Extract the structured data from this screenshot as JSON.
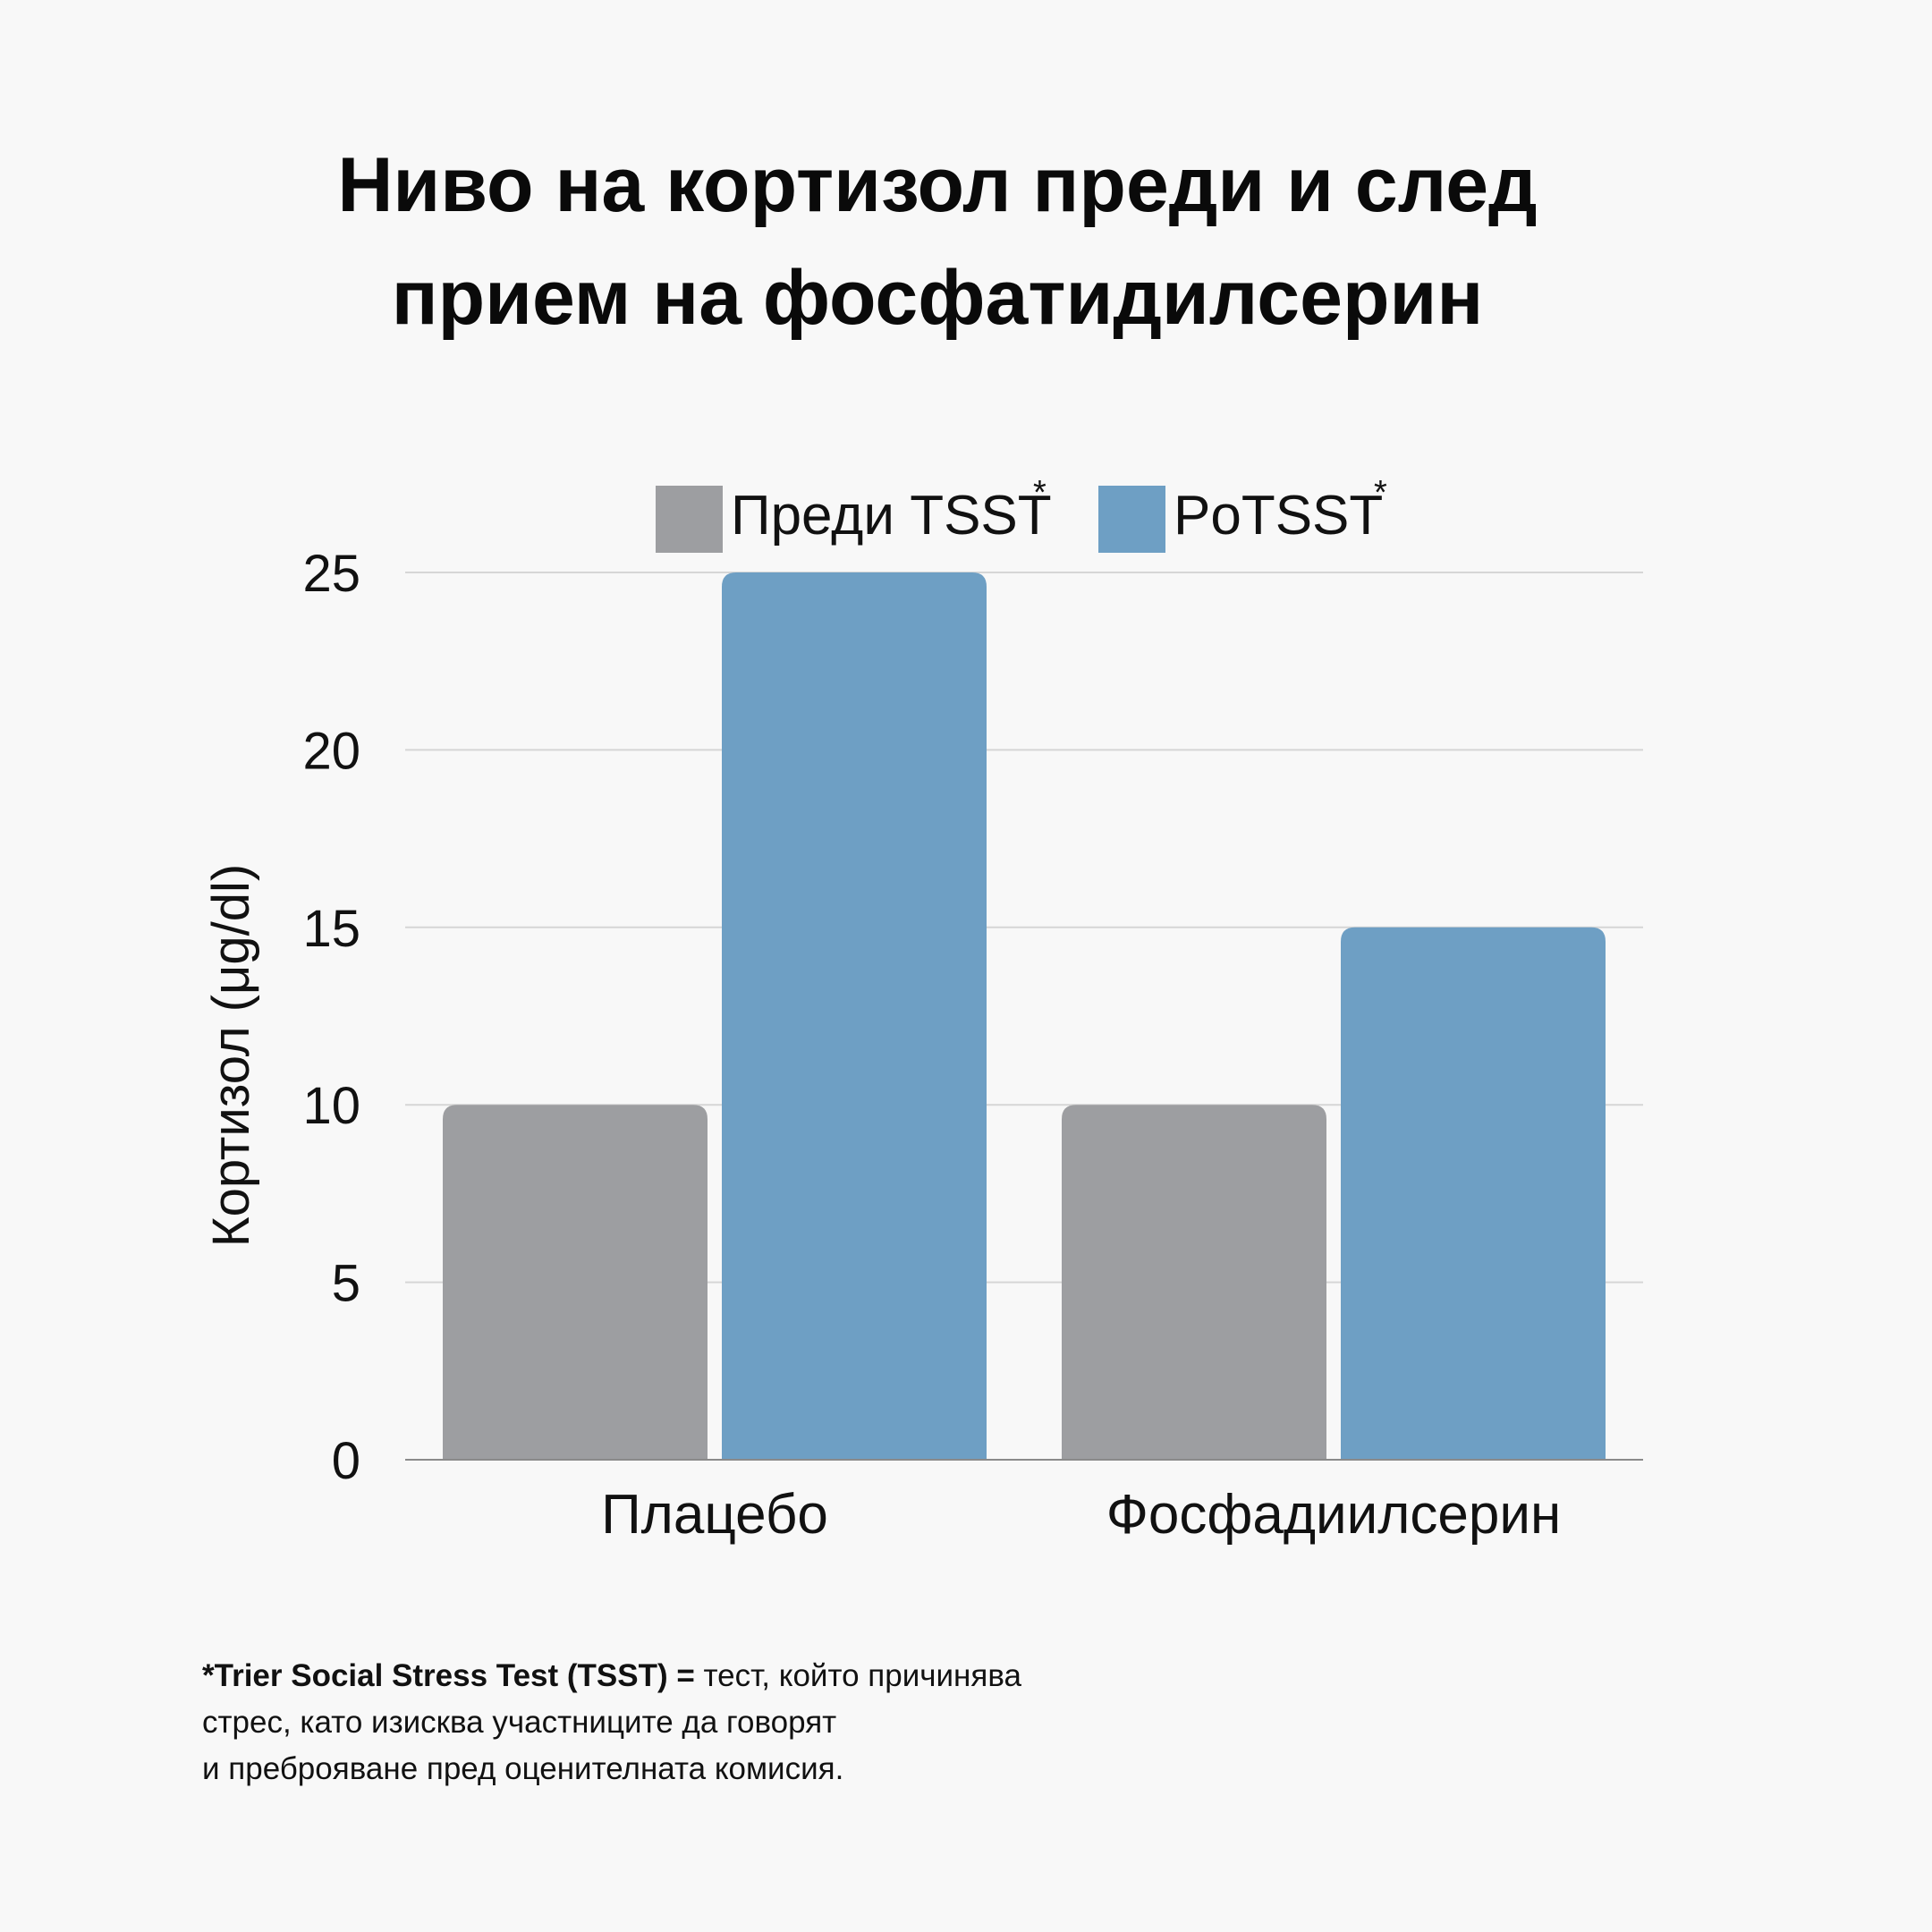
{
  "chart_data": {
    "type": "bar",
    "title_lines": [
      "Ниво на кортизол преди и след",
      "прием на фосфатидилсерин"
    ],
    "categories": [
      "Плацебо",
      "Фосфадиилсерин"
    ],
    "series": [
      {
        "name": "Преди TSST",
        "marker": "*",
        "color": "#9d9ea1",
        "values": [
          10,
          10
        ]
      },
      {
        "name": "PoTSST",
        "marker": "*",
        "color": "#6e9fc4",
        "values": [
          25,
          15
        ]
      }
    ],
    "ylabel": "Кортизол (μg/dl)",
    "xlabel": "",
    "ylim": [
      0,
      25
    ],
    "yticks": [
      0,
      5,
      10,
      15,
      20,
      25
    ],
    "grid": true,
    "legend_position": "top"
  },
  "footnote": {
    "bold": "*Trier Social Stress Test (TSST) = ",
    "line1": "тест, който причинява",
    "line2": "стрес, като изисква участниците да говорят",
    "line3": "и преброяване пред оценителната комисия."
  },
  "colors": {
    "background": "#f8f8f8",
    "grid": "#d6d6d6",
    "axis": "#8a8a8a"
  }
}
